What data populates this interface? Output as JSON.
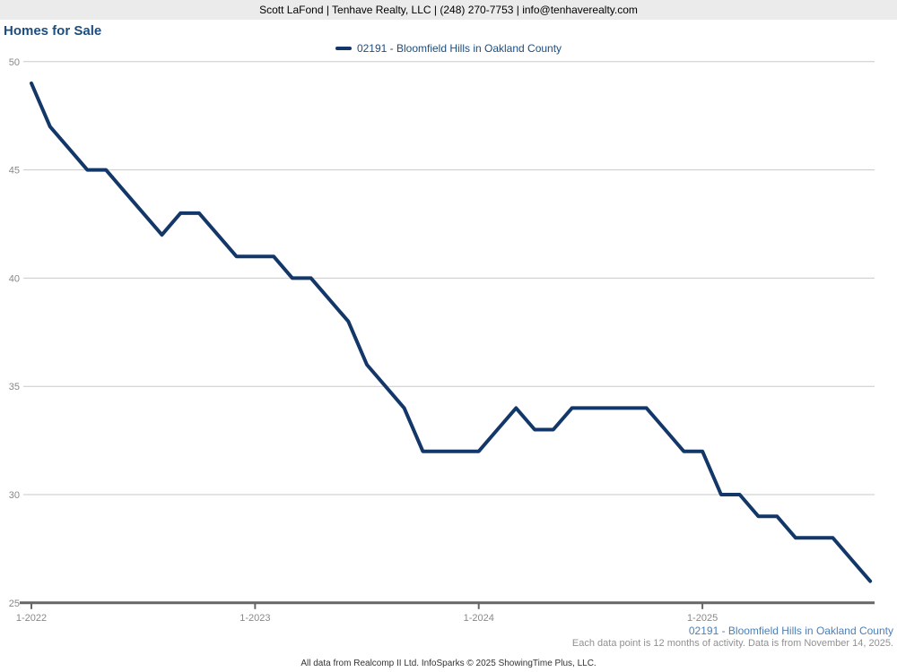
{
  "header": {
    "contact_line": "Scott LaFond | Tenhave Realty, LLC | (248) 270-7753 | info@tenhaverealty.com"
  },
  "page": {
    "title": "Homes for Sale"
  },
  "legend": {
    "label": "02191 - Bloomfield Hills in Oakland County"
  },
  "footer": {
    "series_label": "02191 - Bloomfield Hills in Oakland County",
    "note": "Each data point is 12 months of activity. Data is from November 14, 2025.",
    "attribution": "All data from Realcomp II Ltd. InfoSparks © 2025 ShowingTime Plus, LLC."
  },
  "colors": {
    "line": "#123768",
    "title_text": "#1d4d7c",
    "legend_text": "#1d4d7c",
    "series_label_text": "#4d7fb8",
    "axis_text": "#888888",
    "gridline": "#c9c9c9",
    "axis_line": "#666666",
    "header_bg": "#ebebeb",
    "header_text": "#000000",
    "note_text": "#909090",
    "attribution_text": "#333333"
  },
  "chart_data": {
    "type": "line",
    "title": "Homes for Sale",
    "ylabel": "",
    "xlabel": "",
    "ylim": [
      25,
      50
    ],
    "y_ticks": [
      25,
      30,
      35,
      40,
      45,
      50
    ],
    "grid": "horizontal",
    "legend_position": "top-center",
    "x_ticks": [
      {
        "label": "1-2022",
        "month_index": 0
      },
      {
        "label": "1-2023",
        "month_index": 12
      },
      {
        "label": "1-2024",
        "month_index": 24
      },
      {
        "label": "1-2025",
        "month_index": 36
      }
    ],
    "x": [
      "1-2022",
      "2-2022",
      "3-2022",
      "4-2022",
      "5-2022",
      "6-2022",
      "7-2022",
      "8-2022",
      "9-2022",
      "10-2022",
      "11-2022",
      "12-2022",
      "1-2023",
      "2-2023",
      "3-2023",
      "4-2023",
      "5-2023",
      "6-2023",
      "7-2023",
      "8-2023",
      "9-2023",
      "10-2023",
      "11-2023",
      "12-2023",
      "1-2024",
      "2-2024",
      "3-2024",
      "4-2024",
      "5-2024",
      "6-2024",
      "7-2024",
      "8-2024",
      "9-2024",
      "10-2024",
      "11-2024",
      "12-2024",
      "1-2025",
      "2-2025",
      "3-2025",
      "4-2025",
      "5-2025",
      "6-2025",
      "7-2025",
      "8-2025",
      "9-2025",
      "10-2025"
    ],
    "series": [
      {
        "name": "02191 - Bloomfield Hills in Oakland County",
        "values": [
          49,
          47,
          46,
          45,
          45,
          44,
          43,
          42,
          43,
          43,
          42,
          41,
          41,
          41,
          40,
          40,
          39,
          38,
          36,
          35,
          34,
          32,
          32,
          32,
          32,
          33,
          34,
          33,
          33,
          34,
          34,
          34,
          34,
          34,
          33,
          32,
          32,
          30,
          30,
          29,
          29,
          28,
          28,
          28,
          27,
          26
        ]
      }
    ]
  }
}
